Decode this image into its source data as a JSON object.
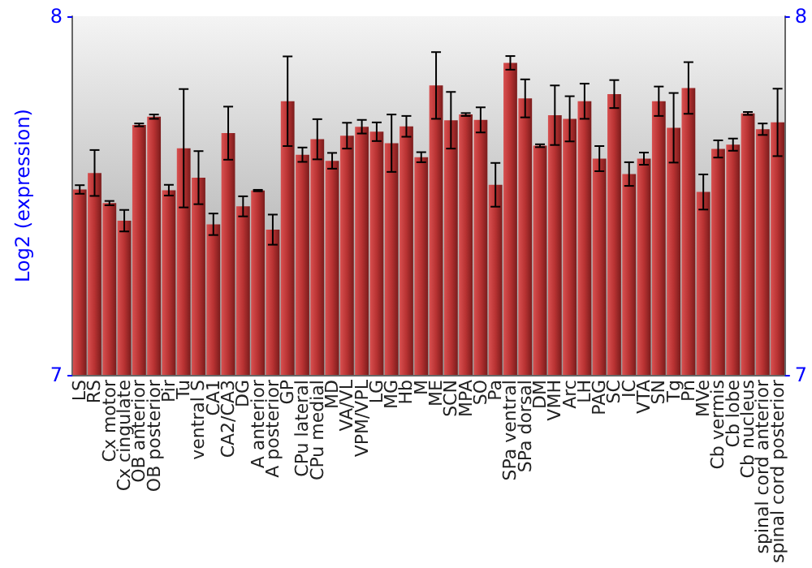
{
  "chart_data": {
    "type": "bar",
    "ylabel": "Log2 (expression)",
    "categories": [
      "LS",
      "RS",
      "Cx motor",
      "Cx cingulate",
      "OB anterior",
      "OB posterior",
      "Pir",
      "Tu",
      "ventral S",
      "CA1",
      "CA2/CA3",
      "DG",
      "A anterior",
      "A posterior",
      "GP",
      "CPu lateral",
      "CPu medial",
      "MD",
      "VA/VL",
      "VPM/VPL",
      "LG",
      "MG",
      "Hb",
      "M",
      "ME",
      "SCN",
      "MPA",
      "SO",
      "Pa",
      "SPa ventral",
      "SPa dorsal",
      "DM",
      "VMH",
      "Arc",
      "LH",
      "PAG",
      "SC",
      "IC",
      "VTA",
      "SN",
      "Tg",
      "Pn",
      "MVe",
      "Cb vermis",
      "Cb lobe",
      "Cb nucleus",
      "spinal cord anterior",
      "spinal cord posterior"
    ],
    "series": [
      {
        "color": "#b83232",
        "values": [
          7.517,
          7.563,
          7.479,
          7.43,
          7.697,
          7.72,
          7.515,
          7.632,
          7.55,
          7.42,
          7.674,
          7.47,
          7.514,
          7.405,
          7.763,
          7.614,
          7.657,
          7.597,
          7.667,
          7.692,
          7.678,
          7.646,
          7.693,
          7.607,
          7.807,
          7.71,
          7.726,
          7.711,
          7.53,
          7.87,
          7.771,
          7.639,
          7.724,
          7.714,
          7.763,
          7.603,
          7.783,
          7.56,
          7.603,
          7.763,
          7.689,
          7.8,
          7.51,
          7.63,
          7.642,
          7.729,
          7.685,
          7.704
        ],
        "errors": [
          0.012,
          0.064,
          0.006,
          0.03,
          0.004,
          0.006,
          0.015,
          0.165,
          0.074,
          0.03,
          0.074,
          0.028,
          0.002,
          0.042,
          0.125,
          0.02,
          0.056,
          0.022,
          0.036,
          0.019,
          0.026,
          0.08,
          0.029,
          0.014,
          0.093,
          0.079,
          0.004,
          0.035,
          0.061,
          0.019,
          0.053,
          0.004,
          0.083,
          0.063,
          0.049,
          0.035,
          0.039,
          0.033,
          0.017,
          0.041,
          0.097,
          0.072,
          0.049,
          0.024,
          0.017,
          0.004,
          0.016,
          0.094
        ]
      }
    ],
    "ylim": [
      7,
      8
    ],
    "yticks": [
      7,
      8
    ],
    "y2lim": [
      7,
      8
    ],
    "y2ticks": [
      7,
      8
    ],
    "grid": false
  }
}
